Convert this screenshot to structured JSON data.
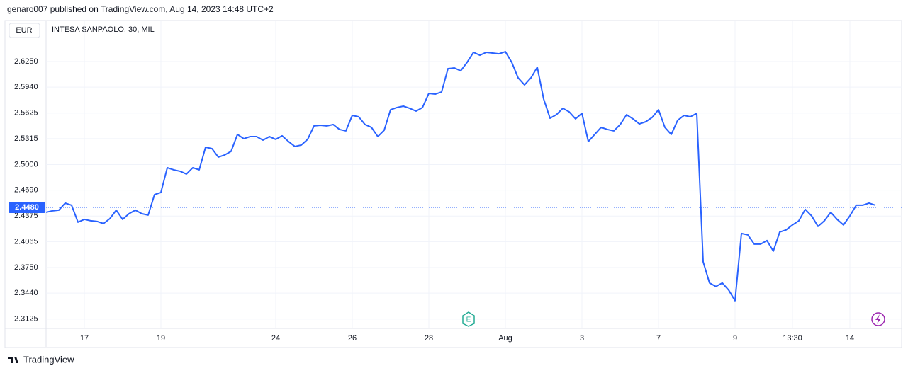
{
  "chart_data": {
    "type": "line",
    "attribution": "genaro007 published on TradingView.com, Aug 14, 2023 14:48 UTC+2",
    "currency": "EUR",
    "brand": "TradingView",
    "earnings_marker": "E",
    "categories": [
      null,
      null,
      null,
      null,
      null,
      null,
      "17",
      null,
      null,
      null,
      null,
      null,
      null,
      null,
      null,
      null,
      null,
      null,
      "19",
      null,
      null,
      null,
      null,
      null,
      null,
      null,
      null,
      null,
      null,
      null,
      null,
      null,
      null,
      null,
      null,
      null,
      "24",
      null,
      null,
      null,
      null,
      null,
      null,
      null,
      null,
      null,
      null,
      null,
      "26",
      null,
      null,
      null,
      null,
      null,
      null,
      null,
      null,
      null,
      null,
      null,
      "28",
      null,
      null,
      null,
      null,
      null,
      null,
      null,
      null,
      null,
      null,
      null,
      "Aug",
      null,
      null,
      null,
      null,
      null,
      null,
      null,
      null,
      null,
      null,
      null,
      "3",
      null,
      null,
      null,
      null,
      null,
      null,
      null,
      null,
      null,
      null,
      null,
      "7",
      null,
      null,
      null,
      null,
      null,
      null,
      null,
      null,
      null,
      null,
      null,
      "9",
      null,
      null,
      null,
      null,
      null,
      null,
      null,
      null,
      "13:30",
      null,
      null,
      null,
      null,
      null,
      null,
      null,
      null,
      "14",
      null,
      null,
      null,
      null
    ],
    "series": [
      {
        "name": "INTESA SANPAOLO, 30, MIL",
        "color": "#2962ff",
        "values": [
          2.4421,
          2.4439,
          2.4447,
          2.4533,
          2.4507,
          2.4301,
          2.4335,
          2.4318,
          2.431,
          2.4284,
          2.4344,
          2.4447,
          2.4335,
          2.4404,
          2.4447,
          2.4404,
          2.4387,
          2.4636,
          2.4662,
          2.4962,
          2.4936,
          2.4919,
          2.4885,
          2.4962,
          2.4936,
          2.5211,
          2.5194,
          2.5091,
          2.5117,
          2.516,
          2.5366,
          2.5314,
          2.534,
          2.534,
          2.5297,
          2.534,
          2.5306,
          2.5349,
          2.528,
          2.522,
          2.5237,
          2.5306,
          2.5469,
          2.5477,
          2.5469,
          2.5486,
          2.5426,
          2.5409,
          2.5597,
          2.558,
          2.5486,
          2.5452,
          2.534,
          2.5417,
          2.5666,
          2.5692,
          2.5709,
          2.5683,
          2.5649,
          2.5692,
          2.5864,
          2.5855,
          2.5881,
          2.6164,
          2.6173,
          2.6138,
          2.6241,
          2.6362,
          2.6327,
          2.6362,
          2.6353,
          2.6344,
          2.637,
          2.6241,
          2.6052,
          2.5967,
          2.6052,
          2.6181,
          2.5795,
          2.5563,
          2.5606,
          2.5683,
          2.564,
          2.5555,
          2.5623,
          2.528,
          2.5366,
          2.5452,
          2.5426,
          2.5409,
          2.5486,
          2.5606,
          2.5555,
          2.5494,
          2.552,
          2.5572,
          2.5666,
          2.5452,
          2.5366,
          2.5537,
          2.5597,
          2.558,
          2.5623,
          2.382,
          2.3563,
          2.352,
          2.3563,
          2.3477,
          2.3348,
          2.4164,
          2.4147,
          2.4035,
          2.4035,
          2.4078,
          2.3949,
          2.4181,
          2.4207,
          2.4267,
          2.4318,
          2.4456,
          2.4378,
          2.425,
          2.4318,
          2.4421,
          2.4335,
          2.4267,
          2.4378,
          2.4507,
          2.4507,
          2.4533,
          2.4507
        ]
      }
    ],
    "last_price": {
      "value": 2.448,
      "label": "2.4480"
    },
    "ylim": [
      2.302,
      2.674
    ],
    "yticks": [
      {
        "value": 2.3125,
        "label": "2.3125"
      },
      {
        "value": 2.344,
        "label": "2.3440"
      },
      {
        "value": 2.375,
        "label": "2.3750"
      },
      {
        "value": 2.4065,
        "label": "2.4065"
      },
      {
        "value": 2.4375,
        "label": "2.4375"
      },
      {
        "value": 2.469,
        "label": "2.4690"
      },
      {
        "value": 2.5,
        "label": "2.5000"
      },
      {
        "value": 2.5315,
        "label": "2.5315"
      },
      {
        "value": 2.5625,
        "label": "2.5625"
      },
      {
        "value": 2.594,
        "label": "2.5940"
      },
      {
        "value": 2.625,
        "label": "2.6250"
      }
    ],
    "grid": true
  }
}
